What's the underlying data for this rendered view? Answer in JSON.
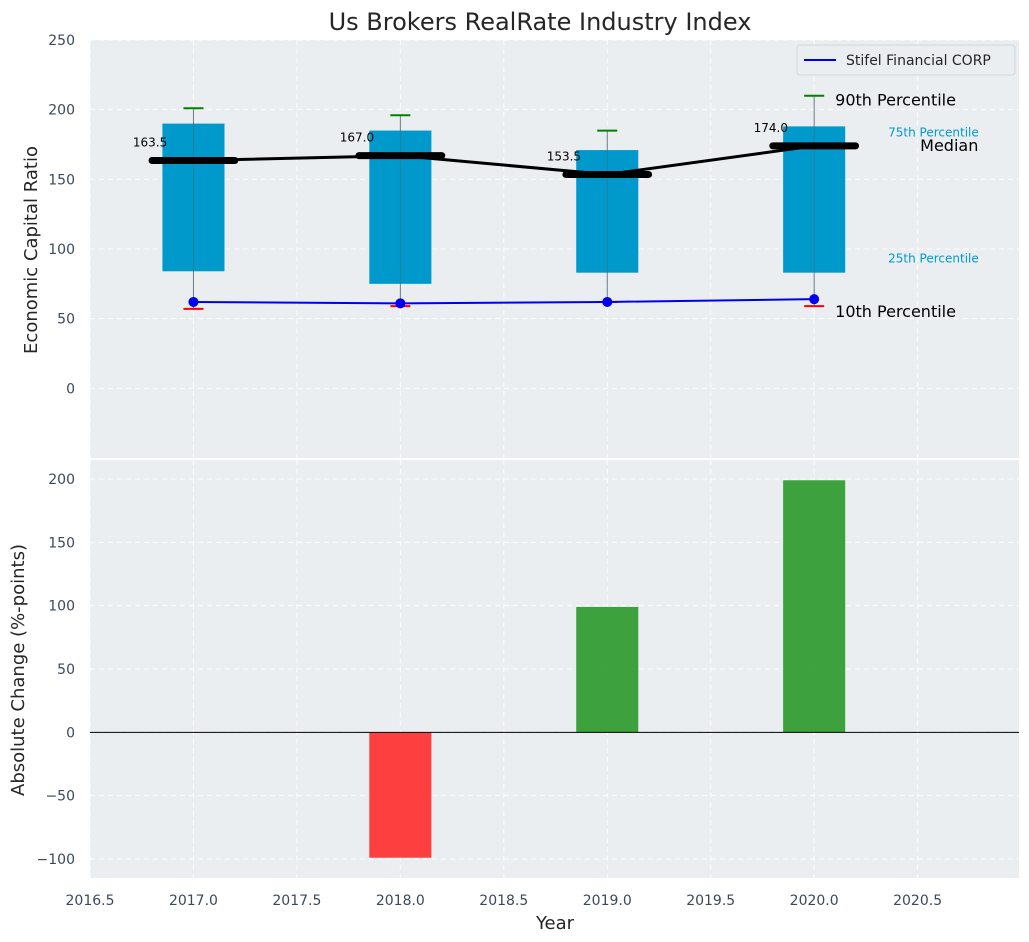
{
  "chart_data": [
    {
      "type": "box",
      "title": "Us Brokers RealRate Industry Index",
      "ylabel": "Economic Capital Ratio",
      "ylim": [
        -50,
        250
      ],
      "yticks": [
        0,
        50,
        100,
        150,
        200,
        250
      ],
      "x": [
        2017,
        2018,
        2019,
        2020
      ],
      "p10": [
        57,
        59,
        62,
        59
      ],
      "p25": [
        84,
        75,
        83,
        83
      ],
      "median": [
        163.5,
        167.0,
        153.5,
        174.0
      ],
      "median_labels": [
        "163.5",
        "167.0",
        "153.5",
        "174.0"
      ],
      "p75": [
        190,
        185,
        171,
        188
      ],
      "p90": [
        201,
        196,
        185,
        210
      ],
      "company": {
        "name": "Stifel Financial CORP",
        "values": [
          62,
          61,
          62,
          64
        ]
      },
      "annotations": {
        "p90": "90th Percentile",
        "p75": "75th Percentile",
        "median": "Median",
        "p25": "25th Percentile",
        "p10": "10th Percentile"
      },
      "legend_placement": "top-right",
      "grid": true,
      "colors": {
        "box": "#0099cc",
        "median": "#000000",
        "company": "#0000ee",
        "p90_cap": "#008000",
        "p10_cap": "#ff0000",
        "background": "#eaeef0"
      }
    },
    {
      "type": "bar",
      "ylabel": "Absolute Change (%-points)",
      "xlabel": "Year",
      "x": [
        2018,
        2019,
        2020
      ],
      "values": [
        -99,
        99,
        199
      ],
      "ylim": [
        -115,
        215
      ],
      "yticks": [
        -100,
        -50,
        0,
        50,
        100,
        150,
        200
      ],
      "xlim": [
        2016.5,
        2020.99
      ],
      "xticks": [
        2016.5,
        2017.0,
        2017.5,
        2018.0,
        2018.5,
        2019.0,
        2019.5,
        2020.0,
        2020.5
      ],
      "xtick_labels": [
        "2016.5",
        "2017.0",
        "2017.5",
        "2018.0",
        "2018.5",
        "2019.0",
        "2019.5",
        "2020.0",
        "2020.5"
      ],
      "grid": true,
      "colors": {
        "positive": "#2e9a2e",
        "negative": "#ff3030",
        "background": "#eaeef0"
      }
    }
  ]
}
